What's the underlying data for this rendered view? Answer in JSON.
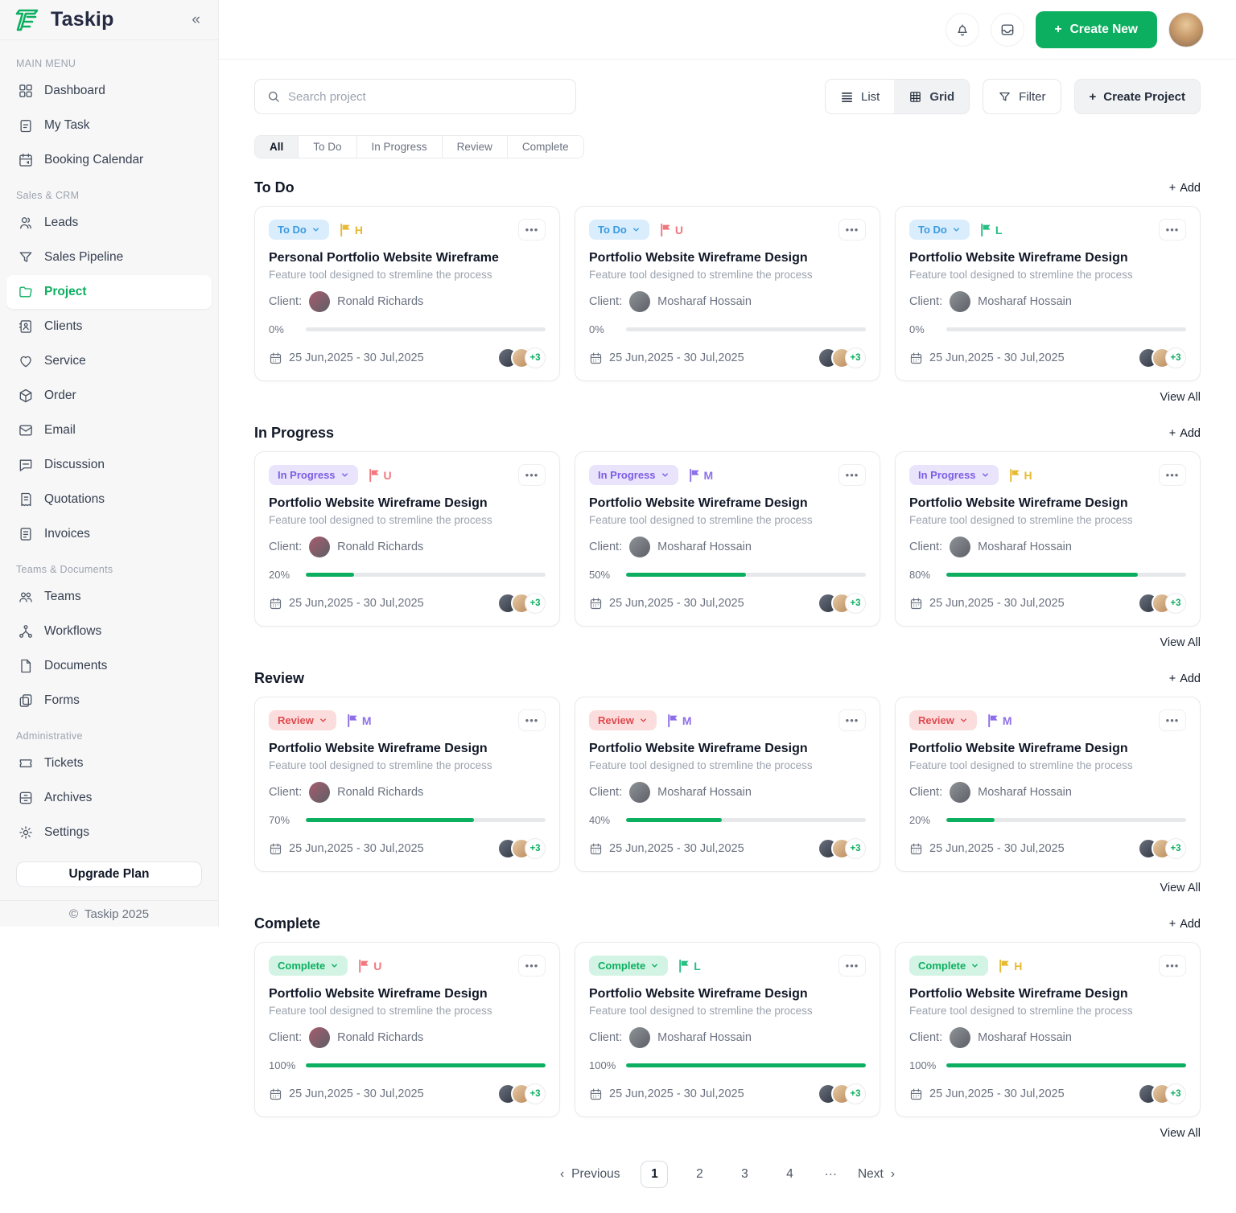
{
  "brand": {
    "name": "Taskip",
    "collapse_glyph": "«",
    "accent": "#0CAF60",
    "footer": "Taskip 2025"
  },
  "sidebar": {
    "groups": [
      {
        "label": "MAIN MENU",
        "items": [
          {
            "icon": "dashboard-icon",
            "label": "Dashboard",
            "active": false
          },
          {
            "icon": "task-icon",
            "label": "My Task",
            "active": false
          },
          {
            "icon": "booking-calendar-icon",
            "label": "Booking Calendar",
            "active": false
          }
        ]
      },
      {
        "label": "Sales & CRM",
        "items": [
          {
            "icon": "leads-icon",
            "label": "Leads",
            "active": false
          },
          {
            "icon": "pipeline-icon",
            "label": "Sales Pipeline",
            "active": false
          },
          {
            "icon": "project-icon",
            "label": "Project",
            "active": true
          },
          {
            "icon": "clients-icon",
            "label": "Clients",
            "active": false
          },
          {
            "icon": "service-icon",
            "label": "Service",
            "active": false
          },
          {
            "icon": "order-icon",
            "label": "Order",
            "active": false
          },
          {
            "icon": "email-icon",
            "label": "Email",
            "active": false
          },
          {
            "icon": "discussion-icon",
            "label": "Discussion",
            "active": false
          },
          {
            "icon": "quotations-icon",
            "label": "Quotations",
            "active": false
          },
          {
            "icon": "invoices-icon",
            "label": "Invoices",
            "active": false
          }
        ]
      },
      {
        "label": "Teams & Documents",
        "items": [
          {
            "icon": "teams-icon",
            "label": "Teams",
            "active": false
          },
          {
            "icon": "workflows-icon",
            "label": "Workflows",
            "active": false
          },
          {
            "icon": "documents-icon",
            "label": "Documents",
            "active": false
          },
          {
            "icon": "forms-icon",
            "label": "Forms",
            "active": false
          }
        ]
      },
      {
        "label": "Administrative",
        "items": [
          {
            "icon": "tickets-icon",
            "label": "Tickets",
            "active": false
          },
          {
            "icon": "archives-icon",
            "label": "Archives",
            "active": false
          },
          {
            "icon": "settings-icon",
            "label": "Settings",
            "active": false
          }
        ]
      }
    ],
    "upgrade_label": "Upgrade Plan"
  },
  "header": {
    "create_new_label": "Create New",
    "icons": [
      "bell-icon",
      "inbox-icon"
    ]
  },
  "toolbar": {
    "search_placeholder": "Search project",
    "view_list_label": "List",
    "view_grid_label": "Grid",
    "filter_label": "Filter",
    "create_project_label": "Create Project"
  },
  "tabs": [
    {
      "label": "All",
      "active": true
    },
    {
      "label": "To Do",
      "active": false
    },
    {
      "label": "In Progress",
      "active": false
    },
    {
      "label": "Review",
      "active": false
    },
    {
      "label": "Complete",
      "active": false
    }
  ],
  "status_colors": {
    "To Do": {
      "bg": "#D9EDFC",
      "fg": "#3B9BE0"
    },
    "In Progress": {
      "bg": "#E9E4FB",
      "fg": "#7C5CE8"
    },
    "Review": {
      "bg": "#FBDDDD",
      "fg": "#E0494F"
    },
    "Complete": {
      "bg": "#D3F4E4",
      "fg": "#0CAF60"
    }
  },
  "flag_colors": {
    "H": "#E8B931",
    "U": "#F2777F",
    "L": "#27BE82",
    "M": "#8D6FE8"
  },
  "client_avatar_colors": {
    "Ronald Richards": "#A85C6E",
    "Mosharaf Hossain": "#8F9499"
  },
  "sections": [
    {
      "title": "To Do",
      "add_label": "Add",
      "view_all_label": "View All",
      "cards": [
        {
          "status": "To Do",
          "flag": "H",
          "title": "Personal Portfolio Website Wireframe",
          "subtitle": "Feature tool designed to stremline the process",
          "client": "Ronald Richards",
          "progress": 0,
          "progress_label": "0%",
          "date": "25 Jun,2025 - 30 Jul,2025",
          "extra": "+3"
        },
        {
          "status": "To Do",
          "flag": "U",
          "title": "Portfolio Website Wireframe Design",
          "subtitle": "Feature tool designed to stremline the process",
          "client": "Mosharaf Hossain",
          "progress": 0,
          "progress_label": "0%",
          "date": "25 Jun,2025 - 30 Jul,2025",
          "extra": "+3"
        },
        {
          "status": "To Do",
          "flag": "L",
          "title": "Portfolio Website Wireframe Design",
          "subtitle": "Feature tool designed to stremline the process",
          "client": "Mosharaf Hossain",
          "progress": 0,
          "progress_label": "0%",
          "date": "25 Jun,2025 - 30 Jul,2025",
          "extra": "+3"
        }
      ]
    },
    {
      "title": "In Progress",
      "add_label": "Add",
      "view_all_label": "View All",
      "cards": [
        {
          "status": "In Progress",
          "flag": "U",
          "title": "Portfolio Website Wireframe Design",
          "subtitle": "Feature tool designed to stremline the process",
          "client": "Ronald Richards",
          "progress": 20,
          "progress_label": "20%",
          "date": "25 Jun,2025 - 30 Jul,2025",
          "extra": "+3"
        },
        {
          "status": "In Progress",
          "flag": "M",
          "title": "Portfolio Website Wireframe Design",
          "subtitle": "Feature tool designed to stremline the process",
          "client": "Mosharaf Hossain",
          "progress": 50,
          "progress_label": "50%",
          "date": "25 Jun,2025 - 30 Jul,2025",
          "extra": "+3"
        },
        {
          "status": "In Progress",
          "flag": "H",
          "title": "Portfolio Website Wireframe Design",
          "subtitle": "Feature tool designed to stremline the process",
          "client": "Mosharaf Hossain",
          "progress": 80,
          "progress_label": "80%",
          "date": "25 Jun,2025 - 30 Jul,2025",
          "extra": "+3"
        }
      ]
    },
    {
      "title": "Review",
      "add_label": "Add",
      "view_all_label": "View All",
      "cards": [
        {
          "status": "Review",
          "flag": "M",
          "title": "Portfolio Website Wireframe Design",
          "subtitle": "Feature tool designed to stremline the process",
          "client": "Ronald Richards",
          "progress": 70,
          "progress_label": "70%",
          "date": "25 Jun,2025 - 30 Jul,2025",
          "extra": "+3"
        },
        {
          "status": "Review",
          "flag": "M",
          "title": "Portfolio Website Wireframe Design",
          "subtitle": "Feature tool designed to stremline the process",
          "client": "Mosharaf Hossain",
          "progress": 40,
          "progress_label": "40%",
          "date": "25 Jun,2025 - 30 Jul,2025",
          "extra": "+3"
        },
        {
          "status": "Review",
          "flag": "M",
          "title": "Portfolio Website Wireframe Design",
          "subtitle": "Feature tool designed to stremline the process",
          "client": "Mosharaf Hossain",
          "progress": 20,
          "progress_label": "20%",
          "date": "25 Jun,2025 - 30 Jul,2025",
          "extra": "+3"
        }
      ]
    },
    {
      "title": "Complete",
      "add_label": "Add",
      "view_all_label": "View All",
      "cards": [
        {
          "status": "Complete",
          "flag": "U",
          "title": "Portfolio Website Wireframe Design",
          "subtitle": "Feature tool designed to stremline the process",
          "client": "Ronald Richards",
          "progress": 100,
          "progress_label": "100%",
          "date": "25 Jun,2025 - 30 Jul,2025",
          "extra": "+3"
        },
        {
          "status": "Complete",
          "flag": "L",
          "title": "Portfolio Website Wireframe Design",
          "subtitle": "Feature tool designed to stremline the process",
          "client": "Mosharaf Hossain",
          "progress": 100,
          "progress_label": "100%",
          "date": "25 Jun,2025 - 30 Jul,2025",
          "extra": "+3"
        },
        {
          "status": "Complete",
          "flag": "H",
          "title": "Portfolio Website Wireframe Design",
          "subtitle": "Feature tool designed to stremline the process",
          "client": "Mosharaf Hossain",
          "progress": 100,
          "progress_label": "100%",
          "date": "25 Jun,2025 - 30 Jul,2025",
          "extra": "+3"
        }
      ]
    }
  ],
  "card_labels": {
    "client_prefix": "Client:"
  },
  "pagination": {
    "previous_label": "Previous",
    "pages": [
      "1",
      "2",
      "3",
      "4"
    ],
    "active_page": "1",
    "ellipsis": "⋯",
    "next_label": "Next"
  }
}
